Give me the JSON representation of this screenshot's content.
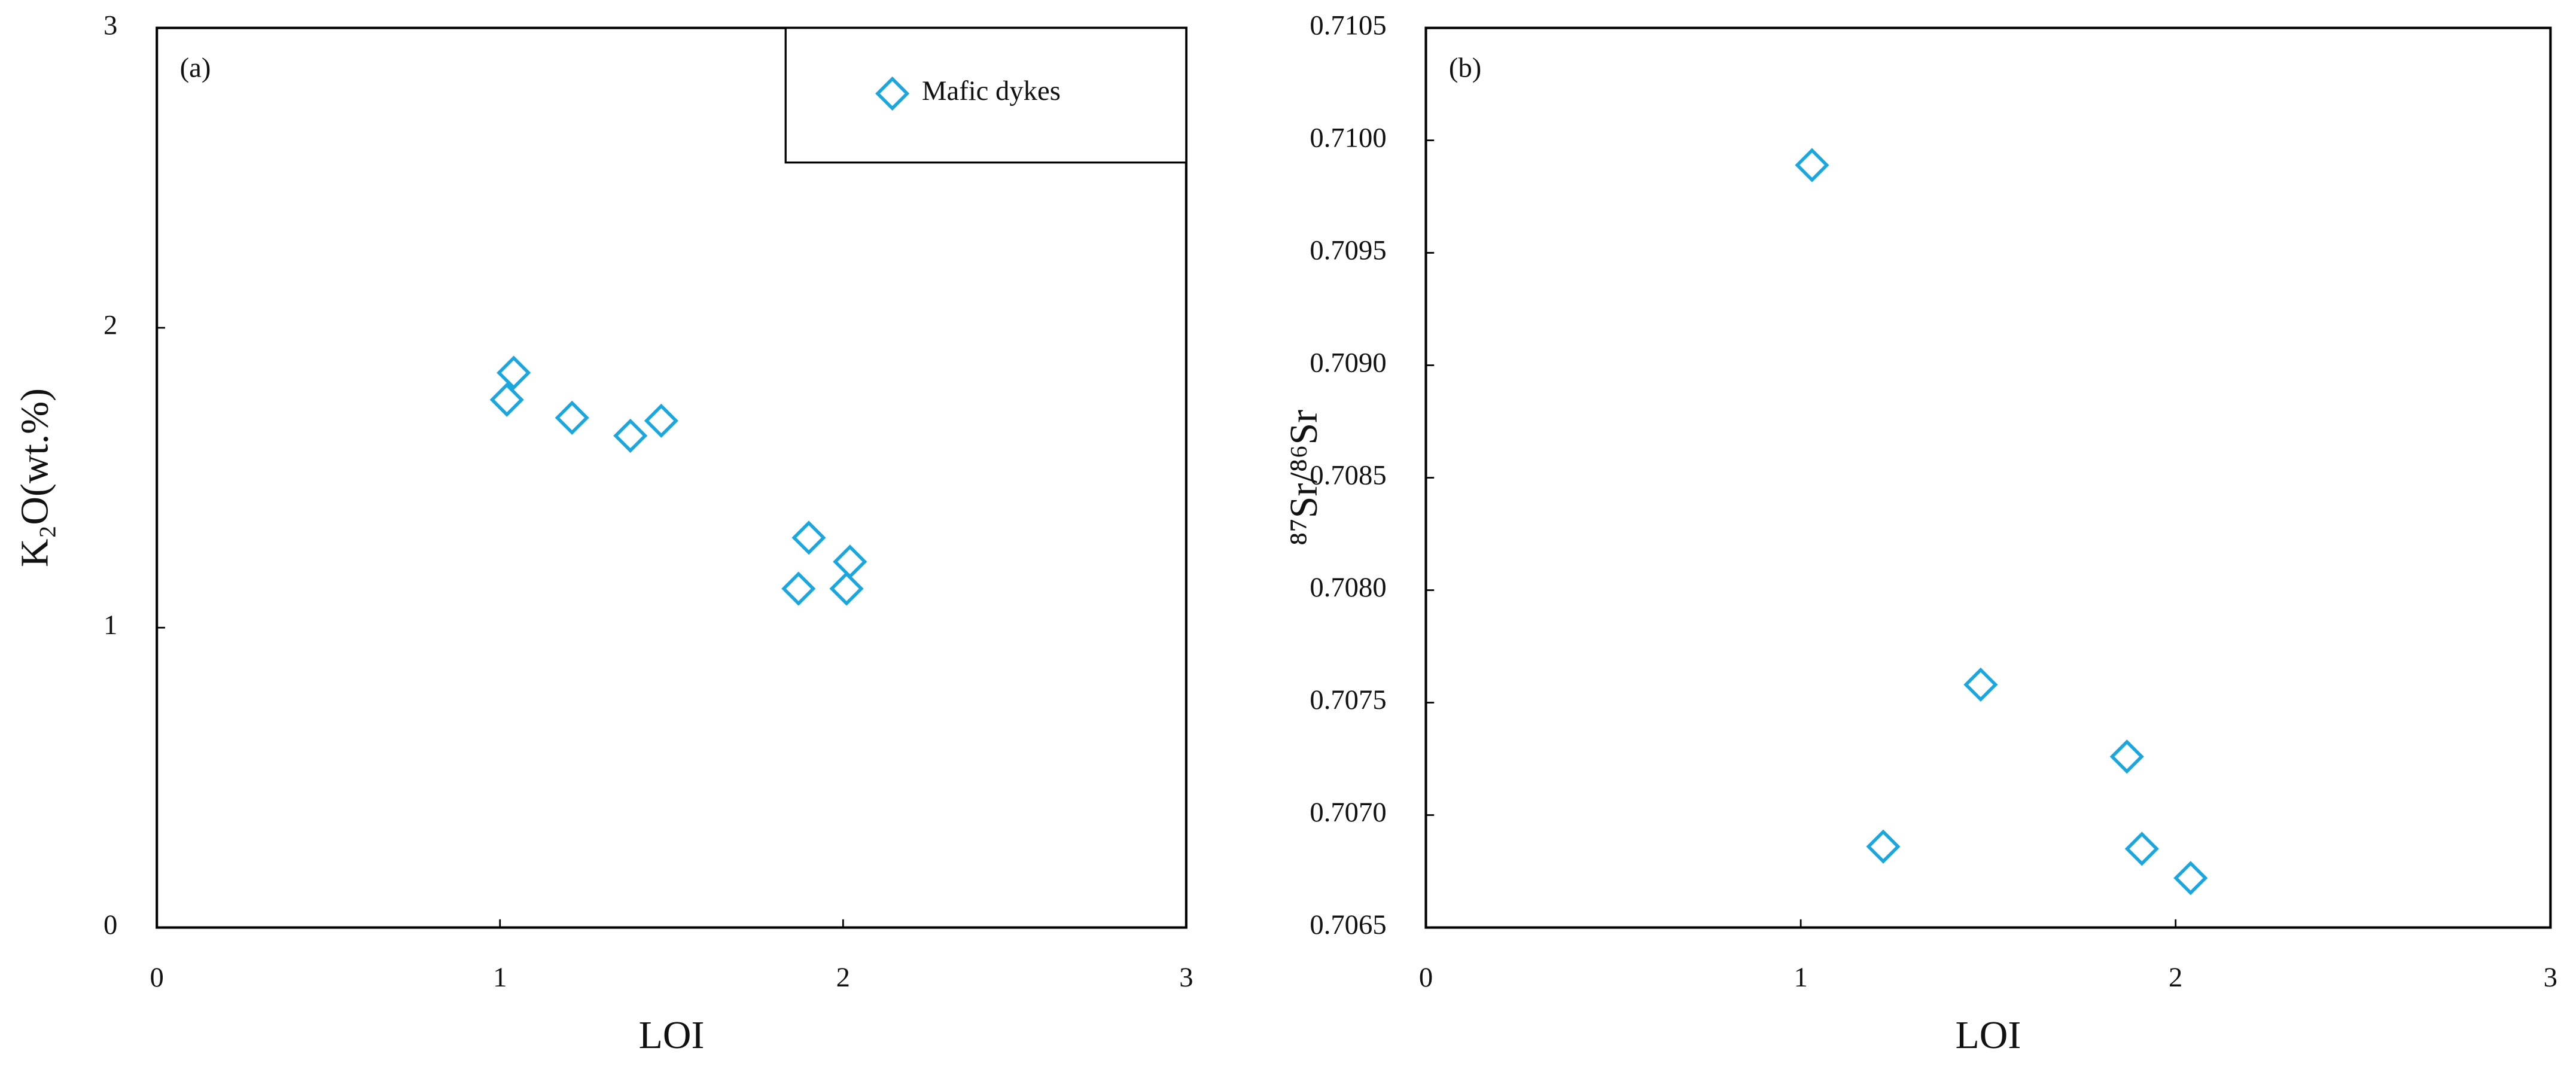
{
  "chart_data": [
    {
      "type": "scatter",
      "panel_label": "(a)",
      "x_label": "LOI",
      "y_label": "K₂O(wt.%)",
      "xlim": [
        0,
        3
      ],
      "xticks": [
        0,
        1,
        2,
        3
      ],
      "ylim": [
        0,
        3
      ],
      "yticks": [
        0,
        1,
        2,
        3
      ],
      "legend": "upper right",
      "series": [
        {
          "name": "Mafic dykes",
          "color": "#1aa7e0",
          "marker": "diamond",
          "x": [
            1.04,
            1.02,
            1.21,
            1.38,
            1.47,
            1.9,
            2.02,
            1.87,
            2.01
          ],
          "values": [
            1.85,
            1.76,
            1.7,
            1.64,
            1.69,
            1.3,
            1.22,
            1.13,
            1.13
          ]
        }
      ]
    },
    {
      "type": "scatter",
      "panel_label": "(b)",
      "x_label": "LOI",
      "y_label": "⁸⁷Sr/⁸⁶Sr",
      "xlim": [
        0,
        3
      ],
      "xticks": [
        0,
        1,
        2,
        3
      ],
      "ylim": [
        0.7065,
        0.7105
      ],
      "yticks": [
        0.7065,
        {
          "value": 0.707,
          "label": "0.7070"
        },
        0.7075,
        {
          "value": 0.708,
          "label": "0.7080"
        },
        0.7085,
        {
          "value": 0.709,
          "label": "0.7090"
        },
        0.7095,
        {
          "value": 0.71,
          "label": "0.7100"
        },
        0.7105
      ],
      "series": [
        {
          "color": "#1aa7e0",
          "marker": "diamond",
          "x": [
            1.03,
            1.22,
            1.48,
            1.87,
            1.91,
            2.04
          ],
          "values": [
            0.70989,
            0.70686,
            0.70758,
            0.70726,
            0.70685,
            0.70672
          ]
        }
      ]
    }
  ]
}
